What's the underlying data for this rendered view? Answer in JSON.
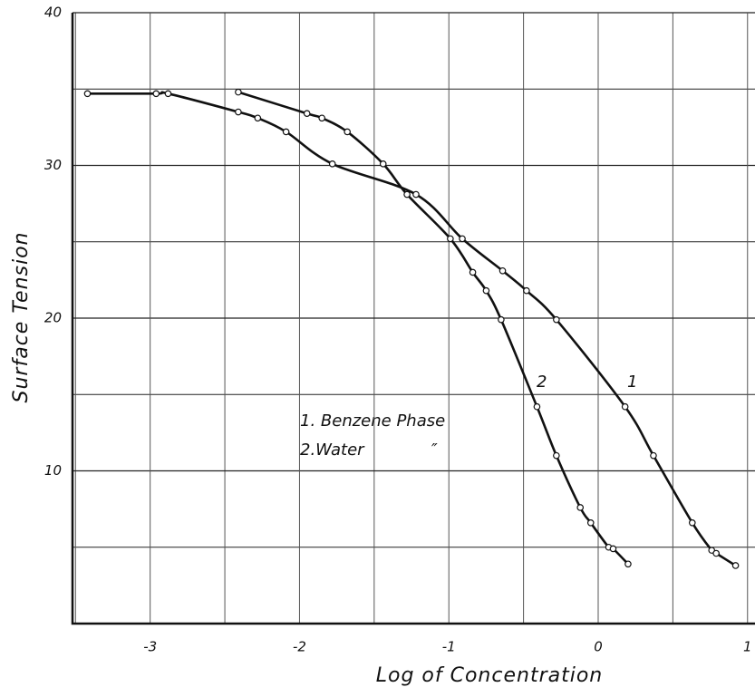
{
  "chart_data": {
    "type": "line",
    "xlabel": "Log of Concentration",
    "ylabel": "Surface Tension",
    "xlim": [
      -3.52,
      1.05
    ],
    "ylim": [
      0,
      40
    ],
    "xticks": [
      -3,
      -2,
      -1,
      0,
      1
    ],
    "yticks": [
      10,
      20,
      30,
      40
    ],
    "xgrid": [
      -3.5,
      -2.5,
      -1.5,
      -0.5,
      0.5
    ],
    "ygrid": [
      5,
      15,
      25,
      35
    ],
    "grid": true,
    "series": [
      {
        "name": "1. Benzene Phase",
        "color": "#111111",
        "x": [
          -3.42,
          -2.96,
          -2.88,
          -2.41,
          -2.28,
          -2.09,
          -1.78,
          -1.22,
          -0.91,
          -0.64,
          -0.48,
          -0.28,
          0.18,
          0.37,
          0.63,
          0.76,
          0.79,
          0.92
        ],
        "values": [
          34.7,
          34.7,
          34.7,
          33.5,
          33.1,
          32.2,
          30.1,
          28.1,
          25.2,
          23.1,
          21.8,
          19.9,
          14.2,
          11.0,
          6.6,
          4.8,
          4.6,
          3.8
        ]
      },
      {
        "name": "2.Water",
        "color": "#111111",
        "x": [
          -2.41,
          -1.95,
          -1.85,
          -1.68,
          -1.44,
          -1.28,
          -0.99,
          -0.84,
          -0.75,
          -0.65,
          -0.41,
          -0.28,
          -0.12,
          -0.05,
          0.07,
          0.1,
          0.2
        ],
        "values": [
          34.8,
          33.4,
          33.1,
          32.2,
          30.1,
          28.1,
          25.2,
          23.0,
          21.8,
          19.9,
          14.2,
          11.0,
          7.6,
          6.6,
          5.0,
          4.9,
          3.9
        ]
      }
    ],
    "annotations": [
      "1",
      "2",
      "″"
    ]
  }
}
